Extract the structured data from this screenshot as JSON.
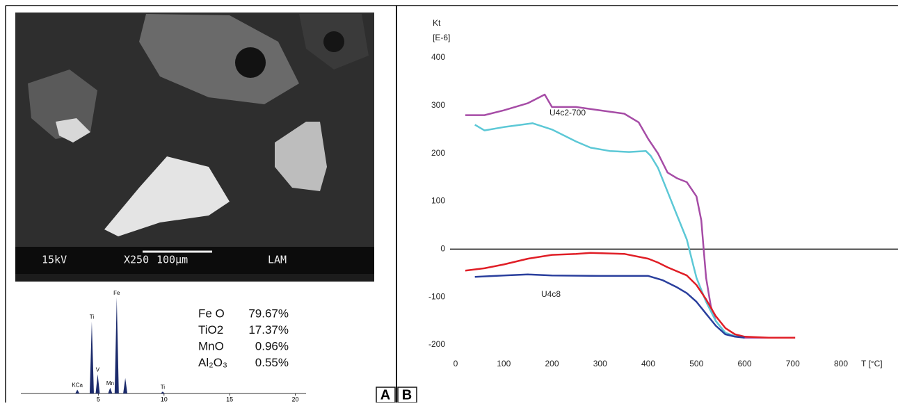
{
  "panel_labels": [
    "A",
    "B"
  ],
  "sem_image": {
    "labels": [
      "15kV",
      "X250",
      "100μm",
      "LAM"
    ]
  },
  "composition": {
    "rows": [
      [
        "Fe O",
        "79.67%"
      ],
      [
        "TiO2",
        "17.37%"
      ],
      [
        "MnO",
        "0.96%"
      ],
      [
        "Al₂O₃",
        "0.55%"
      ]
    ]
  },
  "chart_data": [
    {
      "type": "spectrum",
      "x": [
        3.4,
        4.5,
        4.95,
        5.9,
        6.4,
        7.05,
        9.9
      ],
      "values": [
        4,
        75,
        20,
        6,
        100,
        16,
        2
      ],
      "peak_labels": [
        "KCa",
        "Ti",
        "V",
        "Mn",
        "Fe",
        null,
        "Ti"
      ],
      "color": "#1b2a6b",
      "xlim": [
        0,
        20.5
      ],
      "ylim": [
        0,
        100
      ],
      "xticks": [
        5,
        10,
        15,
        20
      ]
    },
    {
      "type": "line",
      "y_label": "Kt",
      "y_unit": "[E-6]",
      "x_label": "T [°C]",
      "xlim": [
        0,
        800
      ],
      "ylim": [
        -200,
        400
      ],
      "xticks": [
        0,
        100,
        200,
        300,
        400,
        500,
        600,
        700,
        800
      ],
      "yticks": [
        -200,
        -100,
        0,
        100,
        200,
        300,
        400
      ],
      "zero_line": true,
      "grid": false,
      "series": [
        {
          "name": "U4c2-700",
          "color": "#a64ca6",
          "x": [
            20,
            60,
            100,
            150,
            185,
            200,
            250,
            300,
            350,
            380,
            400,
            420,
            440,
            460,
            480,
            500,
            510,
            515,
            520,
            530,
            540,
            560,
            580,
            600,
            700
          ],
          "values": [
            280,
            280,
            290,
            305,
            323,
            297,
            297,
            290,
            283,
            265,
            230,
            200,
            160,
            148,
            140,
            110,
            60,
            0,
            -60,
            -120,
            -150,
            -175,
            -182,
            -185,
            -185
          ]
        },
        {
          "color": "#5cc8d6",
          "x": [
            40,
            60,
            100,
            160,
            200,
            250,
            280,
            320,
            360,
            395,
            405,
            420,
            440,
            460,
            480,
            490,
            500,
            520,
            540,
            560,
            580,
            600
          ],
          "values": [
            260,
            248,
            255,
            263,
            250,
            225,
            212,
            205,
            203,
            205,
            195,
            170,
            120,
            70,
            20,
            -20,
            -60,
            -110,
            -150,
            -175,
            -182,
            -185
          ]
        },
        {
          "color": "#e01e26",
          "x": [
            20,
            60,
            100,
            150,
            200,
            250,
            280,
            350,
            400,
            420,
            440,
            480,
            500,
            520,
            540,
            560,
            580,
            600,
            650,
            705
          ],
          "values": [
            -45,
            -40,
            -32,
            -20,
            -12,
            -10,
            -8,
            -10,
            -20,
            -28,
            -38,
            -55,
            -75,
            -105,
            -140,
            -165,
            -178,
            -183,
            -185,
            -185
          ]
        },
        {
          "name": "U4c8",
          "color": "#2a3f9d",
          "x": [
            40,
            100,
            150,
            200,
            300,
            400,
            430,
            460,
            480,
            500,
            520,
            540,
            560,
            580,
            600
          ],
          "values": [
            -58,
            -55,
            -53,
            -55,
            -56,
            -56,
            -65,
            -80,
            -92,
            -110,
            -135,
            -160,
            -178,
            -183,
            -185
          ]
        }
      ]
    }
  ]
}
